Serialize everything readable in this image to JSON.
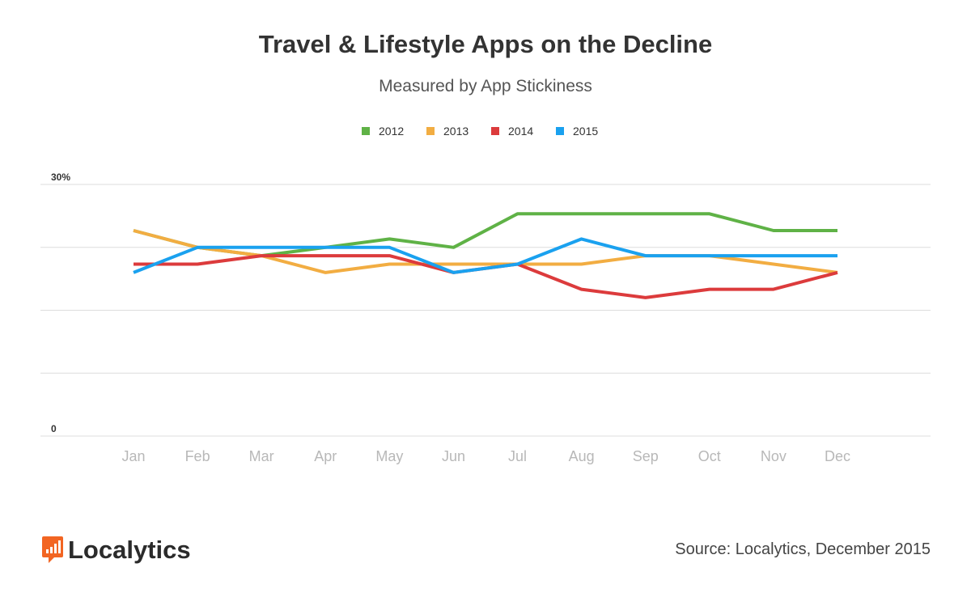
{
  "chart_data": {
    "type": "line",
    "title": "Travel & Lifestyle Apps on the Decline",
    "subtitle": "Measured by App Stickiness",
    "xlabel": "",
    "ylabel": "",
    "categories": [
      "Jan",
      "Feb",
      "Mar",
      "Apr",
      "May",
      "Jun",
      "Jul",
      "Aug",
      "Sep",
      "Oct",
      "Nov",
      "Dec"
    ],
    "ylim": [
      0,
      30
    ],
    "y_ticks": [
      {
        "value": 30,
        "label": "30%"
      },
      {
        "value": 22.5,
        "label": ""
      },
      {
        "value": 15,
        "label": ""
      },
      {
        "value": 7.5,
        "label": ""
      },
      {
        "value": 0,
        "label": "0"
      }
    ],
    "grid": true,
    "legend_position": "top-center",
    "series": [
      {
        "name": "2012",
        "color": "#5fb246",
        "values": [
          24.5,
          22.5,
          21.5,
          22.5,
          23.5,
          22.5,
          26.5,
          26.5,
          26.5,
          26.5,
          24.5,
          24.5
        ]
      },
      {
        "name": "2013",
        "color": "#f2ad42",
        "values": [
          24.5,
          22.5,
          21.5,
          19.5,
          20.5,
          20.5,
          20.5,
          20.5,
          21.5,
          21.5,
          20.5,
          19.5
        ]
      },
      {
        "name": "2014",
        "color": "#dc3b3c",
        "values": [
          20.5,
          20.5,
          21.5,
          21.5,
          21.5,
          19.5,
          20.5,
          17.5,
          16.5,
          17.5,
          17.5,
          19.5
        ]
      },
      {
        "name": "2015",
        "color": "#1aa1ef",
        "values": [
          19.5,
          22.5,
          22.5,
          22.5,
          22.5,
          19.5,
          20.5,
          23.5,
          21.5,
          21.5,
          21.5,
          21.5
        ]
      }
    ]
  },
  "footer": {
    "brand": "Localytics",
    "brand_color": "#f26522",
    "source": "Source: Localytics, December 2015"
  }
}
